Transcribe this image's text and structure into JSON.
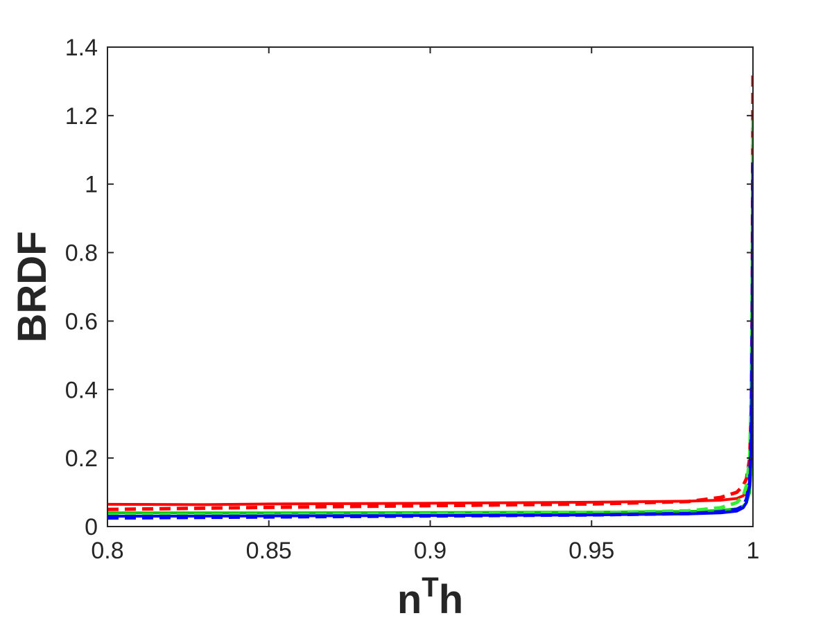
{
  "chart_data": {
    "type": "line",
    "title": "",
    "xlabel": "n",
    "xlabel_superscript": "T",
    "xlabel_suffix": "h",
    "ylabel": "BRDF",
    "xlim": [
      0.8,
      1.0
    ],
    "ylim": [
      0,
      1.4
    ],
    "xticks": [
      0.8,
      0.85,
      0.9,
      0.95,
      1.0
    ],
    "xtick_labels": [
      "0.8",
      "0.85",
      "0.9",
      "0.95",
      "1"
    ],
    "yticks": [
      0,
      0.2,
      0.4,
      0.6,
      0.8,
      1.0,
      1.2,
      1.4
    ],
    "ytick_labels": [
      "0",
      "0.2",
      "0.4",
      "0.6",
      "0.8",
      "1",
      "1.2",
      "1.4"
    ],
    "grid": false,
    "legend": "none",
    "series": [
      {
        "color": "#ff0000",
        "style": "solid",
        "x": [
          0.8,
          0.83,
          0.85,
          0.9,
          0.95,
          0.98,
          0.99,
          0.995,
          0.997,
          0.998,
          0.999,
          0.9995,
          1.0
        ],
        "y": [
          0.065,
          0.064,
          0.066,
          0.068,
          0.071,
          0.074,
          0.077,
          0.082,
          0.09,
          0.1,
          0.13,
          0.2,
          0.32
        ]
      },
      {
        "color": "#ff0000",
        "style": "dashed",
        "x": [
          0.8,
          0.85,
          0.9,
          0.95,
          0.98,
          0.99,
          0.995,
          0.997,
          0.998,
          0.999,
          0.9995,
          0.9998,
          1.0
        ],
        "y": [
          0.05,
          0.056,
          0.061,
          0.066,
          0.073,
          0.085,
          0.1,
          0.12,
          0.14,
          0.2,
          0.35,
          0.7,
          1.33
        ]
      },
      {
        "color": "#00cc00",
        "style": "solid",
        "x": [
          0.8,
          0.85,
          0.9,
          0.95,
          0.98,
          0.99,
          0.995,
          0.997,
          0.998,
          0.999,
          0.9995,
          1.0
        ],
        "y": [
          0.04,
          0.04,
          0.041,
          0.042,
          0.044,
          0.047,
          0.052,
          0.06,
          0.07,
          0.1,
          0.18,
          0.3
        ]
      },
      {
        "color": "#33ee33",
        "style": "dashed",
        "x": [
          0.8,
          0.85,
          0.9,
          0.95,
          0.98,
          0.99,
          0.995,
          0.997,
          0.998,
          0.999,
          0.9995,
          0.9998,
          1.0
        ],
        "y": [
          0.033,
          0.035,
          0.037,
          0.04,
          0.046,
          0.055,
          0.07,
          0.09,
          0.12,
          0.2,
          0.4,
          0.75,
          1.2
        ]
      },
      {
        "color": "#0000ff",
        "style": "solid",
        "x": [
          0.8,
          0.85,
          0.9,
          0.95,
          0.98,
          0.99,
          0.995,
          0.997,
          0.998,
          0.999,
          0.9995,
          0.9998,
          1.0
        ],
        "y": [
          0.03,
          0.031,
          0.032,
          0.034,
          0.037,
          0.04,
          0.045,
          0.055,
          0.07,
          0.12,
          0.25,
          0.55,
          1.05
        ]
      },
      {
        "color": "#0000ff",
        "style": "dashed",
        "x": [
          0.8,
          0.85,
          0.9,
          0.95,
          0.98,
          0.99,
          0.995,
          0.997,
          0.998,
          0.999,
          0.9995,
          0.9998,
          1.0
        ],
        "y": [
          0.025,
          0.028,
          0.031,
          0.034,
          0.038,
          0.043,
          0.05,
          0.06,
          0.08,
          0.13,
          0.27,
          0.6,
          1.08
        ]
      }
    ]
  }
}
